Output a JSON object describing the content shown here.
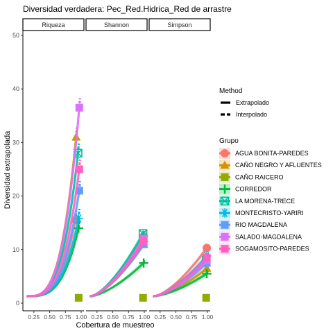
{
  "chart_data": {
    "type": "line",
    "title": "Diversidad verdadera: Pec_Red.Hidrica_Red de arrastre",
    "xlabel": "Cobertura de muestreo",
    "ylabel": "Diversidad extrapolada",
    "ylim": [
      0,
      50
    ],
    "xlim": [
      0.12,
      1.0
    ],
    "y_ticks": [
      "0",
      "10",
      "20",
      "30",
      "40",
      "50"
    ],
    "x_ticks": [
      "0.25",
      "0.50",
      "0.75",
      "1.00"
    ],
    "x_tick_values": [
      0.25,
      0.5,
      0.75,
      1.0
    ],
    "grid": false,
    "facets": [
      "Riqueza",
      "Shannon",
      "Simpson"
    ],
    "legend_method": {
      "title": "Method",
      "entries": [
        "Extrapolado",
        "Interpolado"
      ]
    },
    "legend_group": {
      "title": "Grupo",
      "placement": "right"
    },
    "series": [
      {
        "name": "AGUA BONITA-PAREDES",
        "color": "#F8766D",
        "shape": "circle",
        "end_x": [
          0.91,
          0.99,
          0.99
        ],
        "end_y": [
          15.5,
          12.5,
          10.3
        ]
      },
      {
        "name": "CAÑO NEGRO Y AFLUENTES",
        "color": "#D39200",
        "shape": "triangle",
        "end_x": [
          0.92,
          0.99,
          0.99
        ],
        "end_y": [
          31.0,
          11.0,
          6.5
        ]
      },
      {
        "name": "CAÑO RAICERO",
        "color": "#93AA00",
        "shape": "square",
        "end_x": [
          0.96,
          0.98,
          0.98
        ],
        "end_y": [
          1.0,
          1.0,
          1.0
        ]
      },
      {
        "name": "CORREDOR",
        "color": "#00BA38",
        "shape": "plus",
        "end_x": [
          0.96,
          0.99,
          0.99
        ],
        "end_y": [
          14.0,
          7.5,
          5.5
        ]
      },
      {
        "name": "LA MORENA-TRECE",
        "color": "#00C19F",
        "shape": "square-x",
        "end_x": [
          0.95,
          0.98,
          0.98
        ],
        "end_y": [
          28.0,
          13.0,
          8.0
        ]
      },
      {
        "name": "MONTECRISTO-YARIRI",
        "color": "#00B9E3",
        "shape": "asterisk",
        "end_x": [
          0.96,
          0.99,
          0.99
        ],
        "end_y": [
          15.8,
          11.5,
          8.8
        ]
      },
      {
        "name": "RIO MAGDALENA",
        "color": "#619CFF",
        "shape": "square",
        "end_x": [
          0.97,
          0.99,
          0.99
        ],
        "end_y": [
          21.0,
          11.0,
          7.5
        ]
      },
      {
        "name": "SALADO-MAGDALENA",
        "color": "#DB72FB",
        "shape": "square",
        "end_x": [
          0.97,
          0.99,
          0.99
        ],
        "end_y": [
          36.5,
          12.0,
          8.0
        ]
      },
      {
        "name": "SOGAMOSITO-PAREDES",
        "color": "#FF61C3",
        "shape": "square",
        "end_x": [
          0.97,
          0.99,
          0.99
        ],
        "end_y": [
          25.0,
          11.5,
          8.5
        ]
      }
    ]
  }
}
